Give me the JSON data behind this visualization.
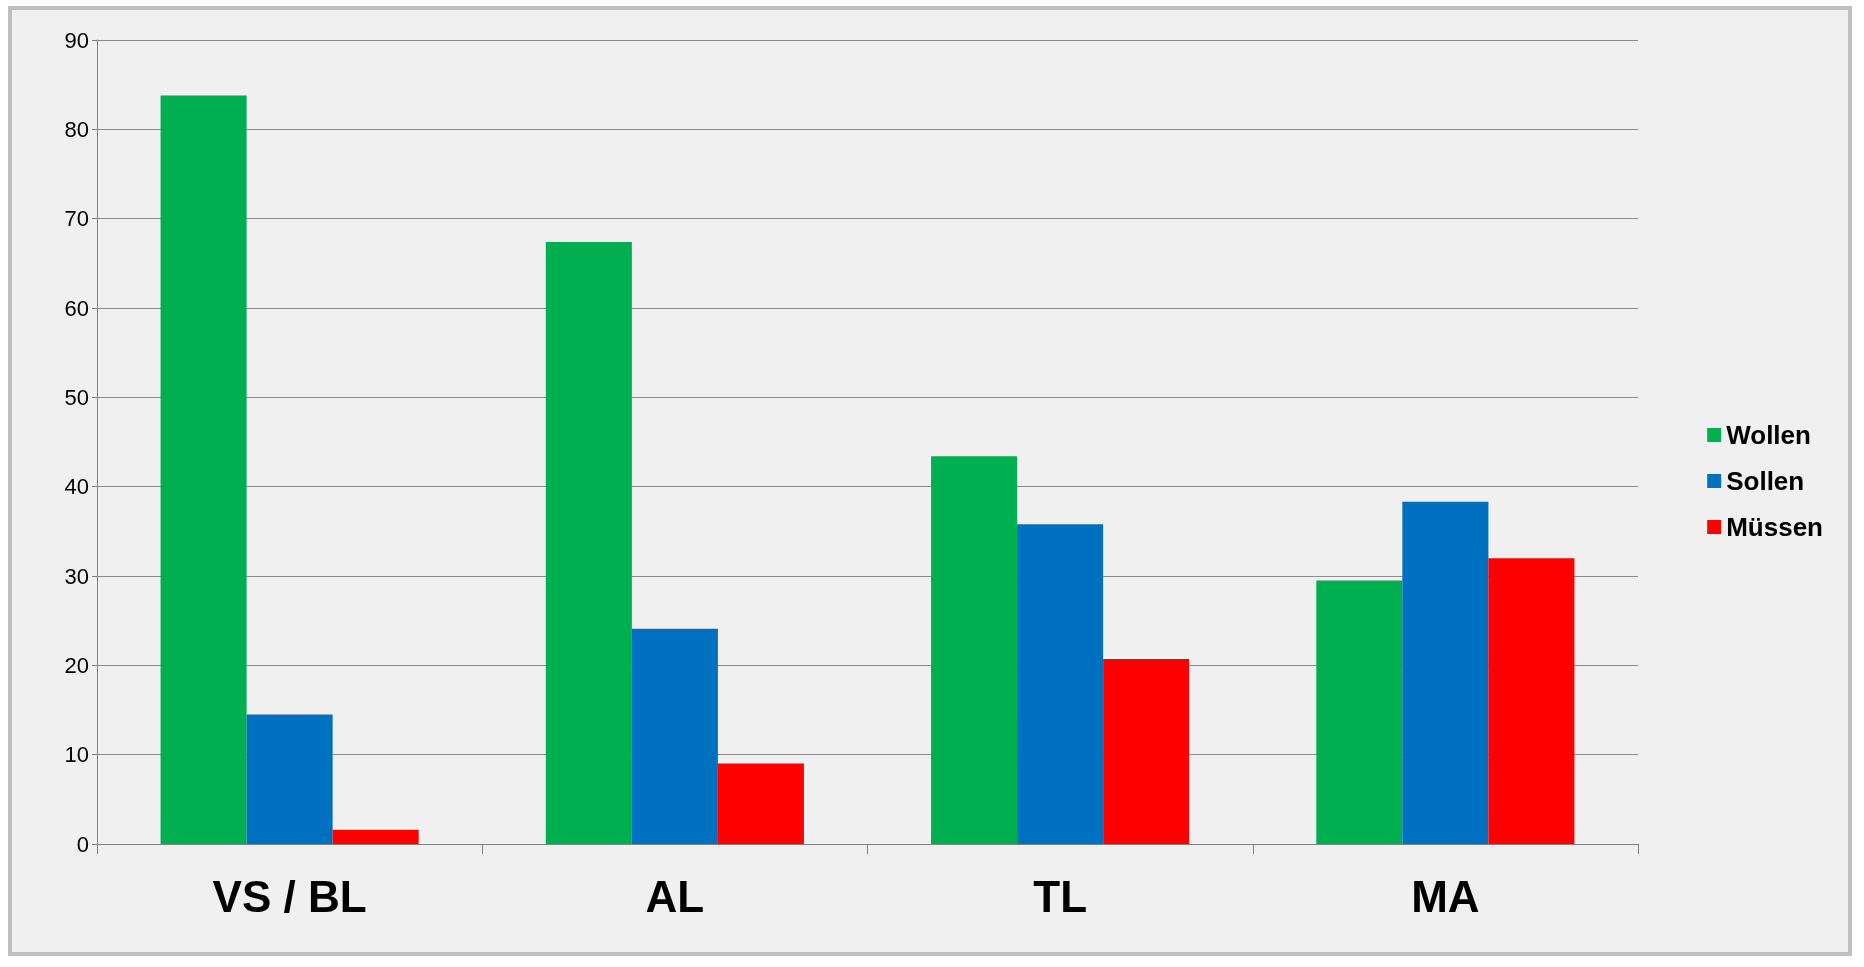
{
  "chart_data": {
    "type": "bar",
    "categories": [
      "VS / BL",
      "AL",
      "TL",
      "MA"
    ],
    "series": [
      {
        "name": "Wollen",
        "color": "#00b050",
        "values": [
          83.8,
          67.4,
          43.4,
          29.5
        ]
      },
      {
        "name": "Sollen",
        "color": "#0070c0",
        "values": [
          14.5,
          24.1,
          35.8,
          38.3
        ]
      },
      {
        "name": "Müssen",
        "color": "#ff0000",
        "values": [
          1.6,
          9.0,
          20.7,
          32.0
        ]
      }
    ],
    "ylim": [
      0,
      90
    ],
    "yticks": [
      0,
      10,
      20,
      30,
      40,
      50,
      60,
      70,
      80,
      90
    ],
    "grid": "y",
    "legend": "right"
  }
}
